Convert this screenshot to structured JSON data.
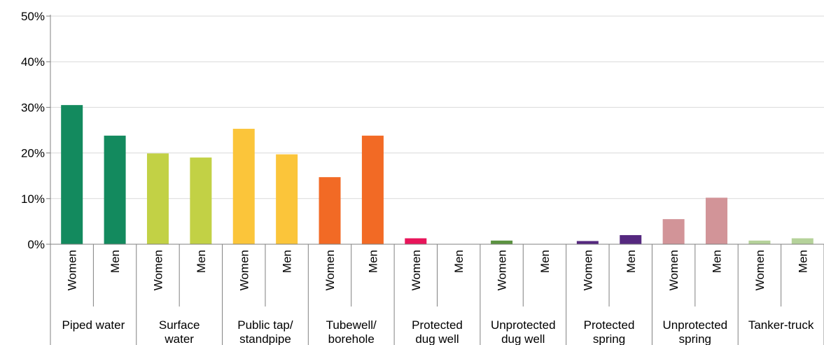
{
  "chart_data": {
    "type": "bar",
    "ylim": [
      0,
      50
    ],
    "y_ticks": [
      "0%",
      "10%",
      "20%",
      "30%",
      "40%",
      "50%"
    ],
    "grid": true,
    "groups": [
      {
        "label_lines": [
          "Piped water"
        ],
        "color": "#138A5E",
        "bars": [
          {
            "label": "Women",
            "value": 30.5
          },
          {
            "label": "Men",
            "value": 23.8
          }
        ]
      },
      {
        "label_lines": [
          "Surface",
          "water"
        ],
        "color": "#C2D145",
        "bars": [
          {
            "label": "Women",
            "value": 19.9
          },
          {
            "label": "Men",
            "value": 19.0
          }
        ]
      },
      {
        "label_lines": [
          "Public tap/",
          "standpipe"
        ],
        "color": "#FBC53A",
        "bars": [
          {
            "label": "Women",
            "value": 25.3
          },
          {
            "label": "Men",
            "value": 19.7
          }
        ]
      },
      {
        "label_lines": [
          "Tubewell/",
          "borehole"
        ],
        "color": "#F26A25",
        "bars": [
          {
            "label": "Women",
            "value": 14.7
          },
          {
            "label": "Men",
            "value": 23.8
          }
        ]
      },
      {
        "label_lines": [
          "Protected",
          "dug well"
        ],
        "color": "#E8145A",
        "bars": [
          {
            "label": "Women",
            "value": 1.3
          },
          {
            "label": "Men",
            "value": 0
          }
        ]
      },
      {
        "label_lines": [
          "Unprotected",
          "dug well"
        ],
        "color": "#5B9340",
        "bars": [
          {
            "label": "Women",
            "value": 0.8
          },
          {
            "label": "Men",
            "value": 0
          }
        ]
      },
      {
        "label_lines": [
          "Protected",
          "spring"
        ],
        "color": "#55287F",
        "bars": [
          {
            "label": "Women",
            "value": 0.7
          },
          {
            "label": "Men",
            "value": 2.0
          }
        ]
      },
      {
        "label_lines": [
          "Unprotected",
          "spring"
        ],
        "color": "#D29498",
        "bars": [
          {
            "label": "Women",
            "value": 5.5
          },
          {
            "label": "Men",
            "value": 10.2
          }
        ]
      },
      {
        "label_lines": [
          "Tanker-truck"
        ],
        "color": "#B5D29A",
        "bars": [
          {
            "label": "Women",
            "value": 0.8
          },
          {
            "label": "Men",
            "value": 1.3
          }
        ]
      }
    ]
  }
}
